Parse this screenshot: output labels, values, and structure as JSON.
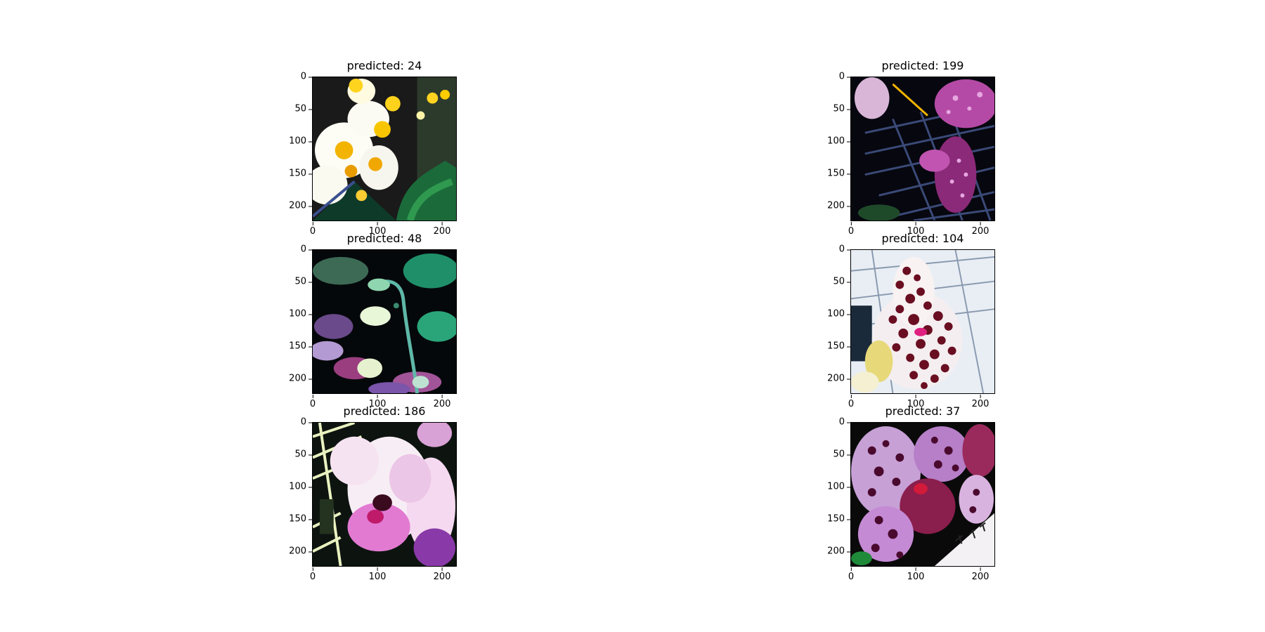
{
  "panels": [
    {
      "title": "predicted: 24",
      "scene": "orchid-white-yellow"
    },
    {
      "title": "predicted: 199",
      "scene": "orchid-magenta-dark"
    },
    {
      "title": "predicted: 48",
      "scene": "bud-stem-green"
    },
    {
      "title": "predicted: 104",
      "scene": "orchid-spotted-red"
    },
    {
      "title": "predicted: 186",
      "scene": "orchid-pink-white"
    },
    {
      "title": "predicted: 37",
      "scene": "orchid-purple-spotted"
    }
  ],
  "axes": {
    "yticks": [
      "0",
      "50",
      "100",
      "150",
      "200"
    ],
    "xticks": [
      "0",
      "100",
      "200"
    ]
  }
}
